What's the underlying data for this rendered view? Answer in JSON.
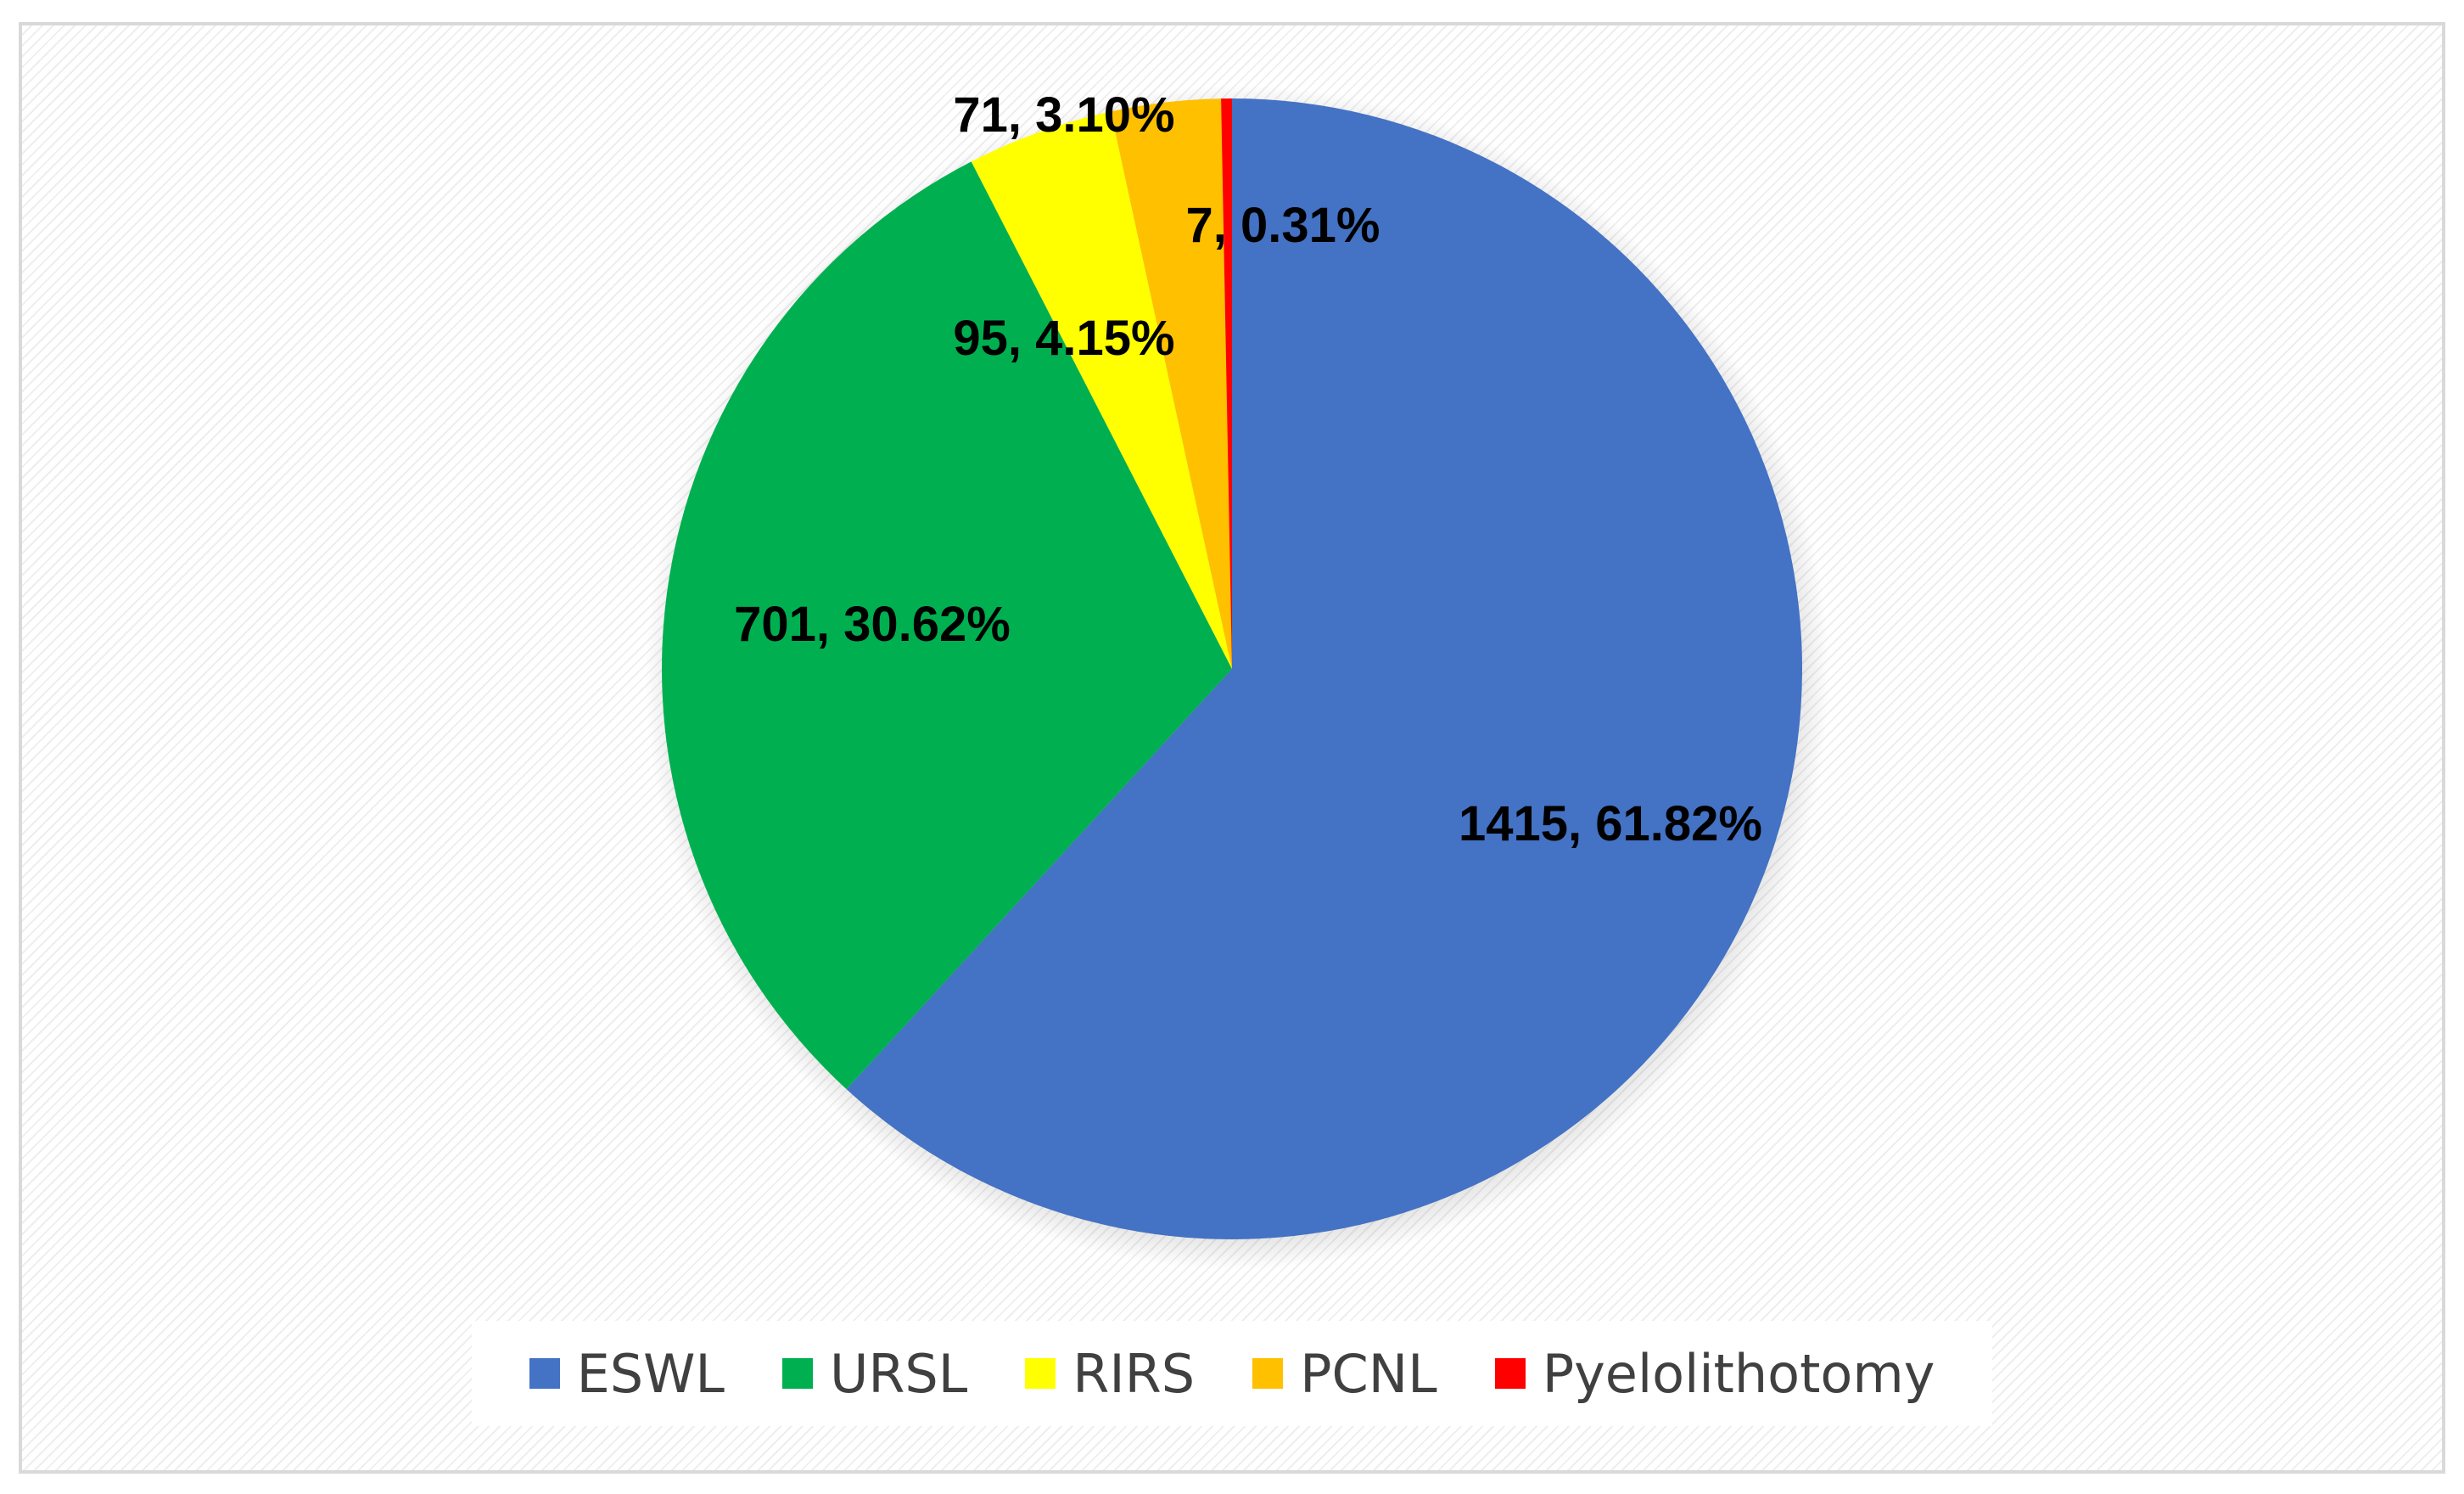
{
  "chart_data": {
    "type": "pie",
    "categories": [
      "ESWL",
      "URSL",
      "RIRS",
      "PCNL",
      "Pyelolithotomy"
    ],
    "values": [
      1415,
      701,
      95,
      71,
      7
    ],
    "percentages": [
      "61.82%",
      "30.62%",
      "4.15%",
      "3.10%",
      "0.31%"
    ],
    "data_labels": [
      "1415, 61.82%",
      "701, 30.62%",
      "95, 4.15%",
      "71, 3.10%",
      "7, 0.31%"
    ],
    "colors": [
      "#4472C4",
      "#00B050",
      "#FFFF00",
      "#FFC000",
      "#FF0000"
    ],
    "start_angle": "12 o'clock",
    "direction": "clockwise",
    "legend_position": "bottom",
    "title": ""
  }
}
